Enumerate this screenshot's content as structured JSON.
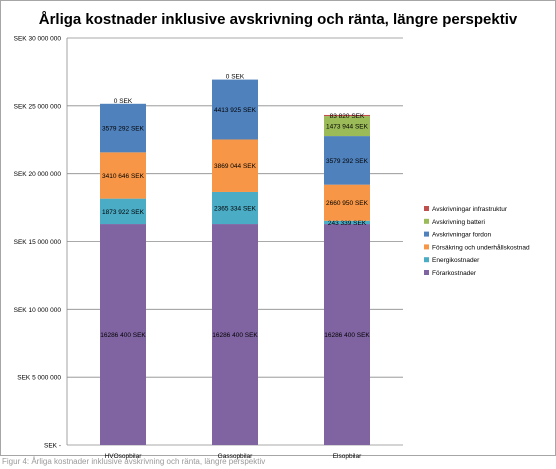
{
  "chart_data": {
    "type": "bar",
    "stacked": true,
    "title": "Årliga kostnader inklusive avskrivning och ränta, längre perspektiv",
    "xlabel": "",
    "ylabel": "",
    "ylim": [
      0,
      30000000
    ],
    "y_ticks": [
      {
        "value": 0,
        "label": "SEK -"
      },
      {
        "value": 5000000,
        "label": "SEK 5 000 000"
      },
      {
        "value": 10000000,
        "label": "SEK 10 000 000"
      },
      {
        "value": 15000000,
        "label": "SEK 15 000 000"
      },
      {
        "value": 20000000,
        "label": "SEK 20 000 000"
      },
      {
        "value": 25000000,
        "label": "SEK 25 000 000"
      },
      {
        "value": 30000000,
        "label": "SEK 30 000 000"
      }
    ],
    "grid": true,
    "legend_position": "right",
    "categories": [
      "HVOsopbilar",
      "Gassopbilar",
      "Elsopbilar"
    ],
    "series": [
      {
        "name": "Förarkostnader",
        "color": "#8064a2",
        "values": [
          16286400,
          16286400,
          16286400
        ],
        "labels": [
          "16286 400 SEK",
          "16286 400 SEK",
          "16286 400 SEK"
        ]
      },
      {
        "name": "Energikostnader",
        "color": "#4bacc6",
        "values": [
          1873922,
          2365334,
          243339
        ],
        "labels": [
          "1873 922 SEK",
          "2365 334 SEK",
          "243 339 SEK"
        ]
      },
      {
        "name": "Försäkring och underhållskostnad",
        "color": "#f79646",
        "values": [
          3410646,
          3869044,
          2660950
        ],
        "labels": [
          "3410 646 SEK",
          "3869 044 SEK",
          "2660 950 SEK"
        ]
      },
      {
        "name": "Avskrivningar fordon",
        "color": "#4f81bd",
        "values": [
          3579292,
          4413925,
          3579292
        ],
        "labels": [
          "3579 292 SEK",
          "4413 925 SEK",
          "3579 292 SEK"
        ]
      },
      {
        "name": "Avskrivning batteri",
        "color": "#9bbb59",
        "values": [
          0,
          0,
          1473944
        ],
        "labels": [
          "",
          "",
          "1473 944 SEK"
        ]
      },
      {
        "name": "Avskrivningar infrastruktur",
        "color": "#c0504d",
        "values": [
          0,
          0,
          83820
        ],
        "labels": [
          "0 SEK",
          "0 SEK",
          "83 820 SEK"
        ]
      }
    ],
    "legend_order": [
      "Avskrivningar infrastruktur",
      "Avskrivning batteri",
      "Avskrivningar fordon",
      "Försäkring och underhållskostnad",
      "Energikostnader",
      "Förarkostnader"
    ]
  },
  "footnote": "Figur 4: Årliga kostnader inklusive avskrivning och ränta, längre perspektiv"
}
